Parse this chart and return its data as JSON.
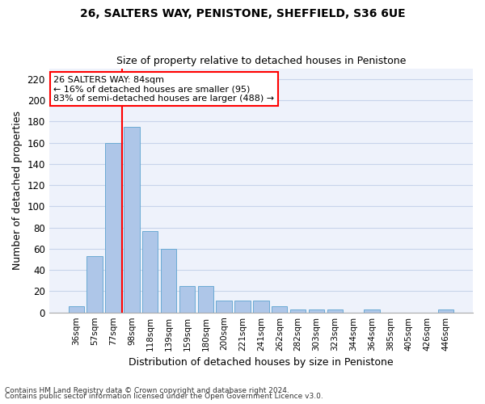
{
  "title1": "26, SALTERS WAY, PENISTONE, SHEFFIELD, S36 6UE",
  "title2": "Size of property relative to detached houses in Penistone",
  "xlabel": "Distribution of detached houses by size in Penistone",
  "ylabel": "Number of detached properties",
  "categories": [
    "36sqm",
    "57sqm",
    "77sqm",
    "98sqm",
    "118sqm",
    "139sqm",
    "159sqm",
    "180sqm",
    "200sqm",
    "221sqm",
    "241sqm",
    "262sqm",
    "282sqm",
    "303sqm",
    "323sqm",
    "344sqm",
    "364sqm",
    "385sqm",
    "405sqm",
    "426sqm",
    "446sqm"
  ],
  "values": [
    6,
    53,
    160,
    175,
    77,
    60,
    25,
    25,
    11,
    11,
    11,
    6,
    3,
    3,
    3,
    0,
    3,
    0,
    0,
    0,
    3
  ],
  "bar_color": "#aec6e8",
  "bar_edge_color": "#6aaad4",
  "vline_color": "red",
  "vline_x": 2.5,
  "annotation_title": "26 SALTERS WAY: 84sqm",
  "annotation_line1": "← 16% of detached houses are smaller (95)",
  "annotation_line2": "83% of semi-detached houses are larger (488) →",
  "annotation_box_color": "white",
  "annotation_box_edge": "red",
  "ylim": [
    0,
    230
  ],
  "yticks": [
    0,
    20,
    40,
    60,
    80,
    100,
    120,
    140,
    160,
    180,
    200,
    220
  ],
  "footnote1": "Contains HM Land Registry data © Crown copyright and database right 2024.",
  "footnote2": "Contains public sector information licensed under the Open Government Licence v3.0.",
  "background_color": "#eef2fb",
  "grid_color": "#c8d4ea"
}
